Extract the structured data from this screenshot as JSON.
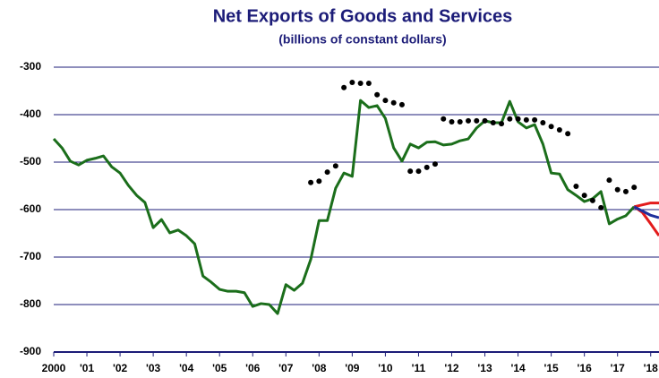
{
  "chart_data": {
    "type": "line",
    "title": "Net Exports of Goods and Services",
    "subtitle": "(billions of constant dollars)",
    "xlim": [
      2000,
      2018.25
    ],
    "ylim": [
      -900,
      -300
    ],
    "yticks": [
      -900,
      -800,
      -700,
      -600,
      -500,
      -400,
      -300
    ],
    "xticks": [
      2000,
      {
        "value": 2001,
        "label": "'01"
      },
      {
        "value": 2002,
        "label": "'02"
      },
      {
        "value": 2003,
        "label": "'03"
      },
      {
        "value": 2004,
        "label": "'04"
      },
      {
        "value": 2005,
        "label": "'05"
      },
      {
        "value": 2006,
        "label": "'06"
      },
      {
        "value": 2007,
        "label": "'07"
      },
      {
        "value": 2008,
        "label": "'08"
      },
      {
        "value": 2009,
        "label": "'09"
      },
      {
        "value": 2010,
        "label": "'10"
      },
      {
        "value": 2011,
        "label": "'11"
      },
      {
        "value": 2012,
        "label": "'12"
      },
      {
        "value": 2013,
        "label": "'13"
      },
      {
        "value": 2014,
        "label": "'14"
      },
      {
        "value": 2015,
        "label": "'15"
      },
      {
        "value": 2016,
        "label": "'16"
      },
      {
        "value": 2017,
        "label": "'17"
      },
      {
        "value": 2018,
        "label": "'18"
      }
    ],
    "grid": true,
    "series": [
      {
        "style": "line",
        "color": "#1b6e1b",
        "x": [
          2000,
          2000.25,
          2000.5,
          2000.75,
          2001,
          2001.25,
          2001.5,
          2001.75,
          2002,
          2002.25,
          2002.5,
          2002.75,
          2003,
          2003.25,
          2003.5,
          2003.75,
          2004,
          2004.25,
          2004.5,
          2004.75,
          2005,
          2005.25,
          2005.5,
          2005.75,
          2006,
          2006.25,
          2006.5,
          2006.75,
          2007,
          2007.25,
          2007.5,
          2007.75,
          2008,
          2008.25,
          2008.5,
          2008.75,
          2009,
          2009.25,
          2009.5,
          2009.75,
          2010,
          2010.25,
          2010.5,
          2010.75,
          2011,
          2011.25,
          2011.5,
          2011.75,
          2012,
          2012.25,
          2012.5,
          2012.75,
          2013,
          2013.25,
          2013.5,
          2013.75,
          2014,
          2014.25,
          2014.5,
          2014.75,
          2015,
          2015.25,
          2015.5,
          2015.75,
          2016,
          2016.25,
          2016.5,
          2016.75,
          2017,
          2017.25,
          2017.5
        ],
        "values": [
          -451,
          -470,
          -498,
          -506,
          -496,
          -492,
          -487,
          -510,
          -523,
          -549,
          -570,
          -585,
          -638,
          -621,
          -649,
          -643,
          -655,
          -672,
          -740,
          -753,
          -768,
          -772,
          -772,
          -775,
          -804,
          -798,
          -800,
          -819,
          -758,
          -770,
          -755,
          -705,
          -623,
          -623,
          -555,
          -523,
          -530,
          -370,
          -385,
          -381,
          -408,
          -470,
          -498,
          -462,
          -470,
          -458,
          -457,
          -464,
          -462,
          -455,
          -451,
          -428,
          -413,
          -417,
          -417,
          -372,
          -415,
          -428,
          -421,
          -462,
          -523,
          -525,
          -558,
          -570,
          -583,
          -577,
          -562,
          -630,
          -620,
          -613,
          -594
        ]
      },
      {
        "style": "dots",
        "color": "#000000",
        "x": [
          2007.75,
          2008,
          2008.25,
          2008.5,
          2008.75,
          2009,
          2009.25,
          2009.5,
          2009.75,
          2010,
          2010.25,
          2010.5,
          2010.75,
          2011,
          2011.25,
          2011.5,
          2011.75,
          2012,
          2012.25,
          2012.5,
          2012.75,
          2013,
          2013.25,
          2013.5,
          2013.75,
          2014,
          2014.25,
          2014.5,
          2014.75,
          2015,
          2015.25,
          2015.5,
          2015.75,
          2016,
          2016.25,
          2016.5,
          2016.75,
          2017,
          2017.25,
          2017.5
        ],
        "values": [
          -543,
          -540,
          -521,
          -508,
          -343,
          -332,
          -334,
          -334,
          -358,
          -370,
          -375,
          -379,
          -519,
          -519,
          -511,
          -504,
          -409,
          -415,
          -415,
          -413,
          -413,
          -413,
          -417,
          -419,
          -409,
          -409,
          -411,
          -411,
          -417,
          -425,
          -432,
          -440,
          -551,
          -570,
          -581,
          -596,
          -538,
          -558,
          -562,
          -553
        ]
      },
      {
        "style": "line",
        "color": "#e31b1b",
        "x": [
          2017.5,
          2017.75,
          2018,
          2018.25
        ],
        "values": [
          -594,
          -590,
          -586,
          -586
        ]
      },
      {
        "style": "line",
        "color": "#e31b1b",
        "x": [
          2017.5,
          2017.75,
          2018,
          2018.25
        ],
        "values": [
          -594,
          -606,
          -630,
          -655
        ]
      },
      {
        "style": "line",
        "color": "#1f2f9c",
        "x": [
          2017.5,
          2017.75,
          2018,
          2018.25
        ],
        "values": [
          -594,
          -603,
          -612,
          -617
        ]
      }
    ]
  }
}
